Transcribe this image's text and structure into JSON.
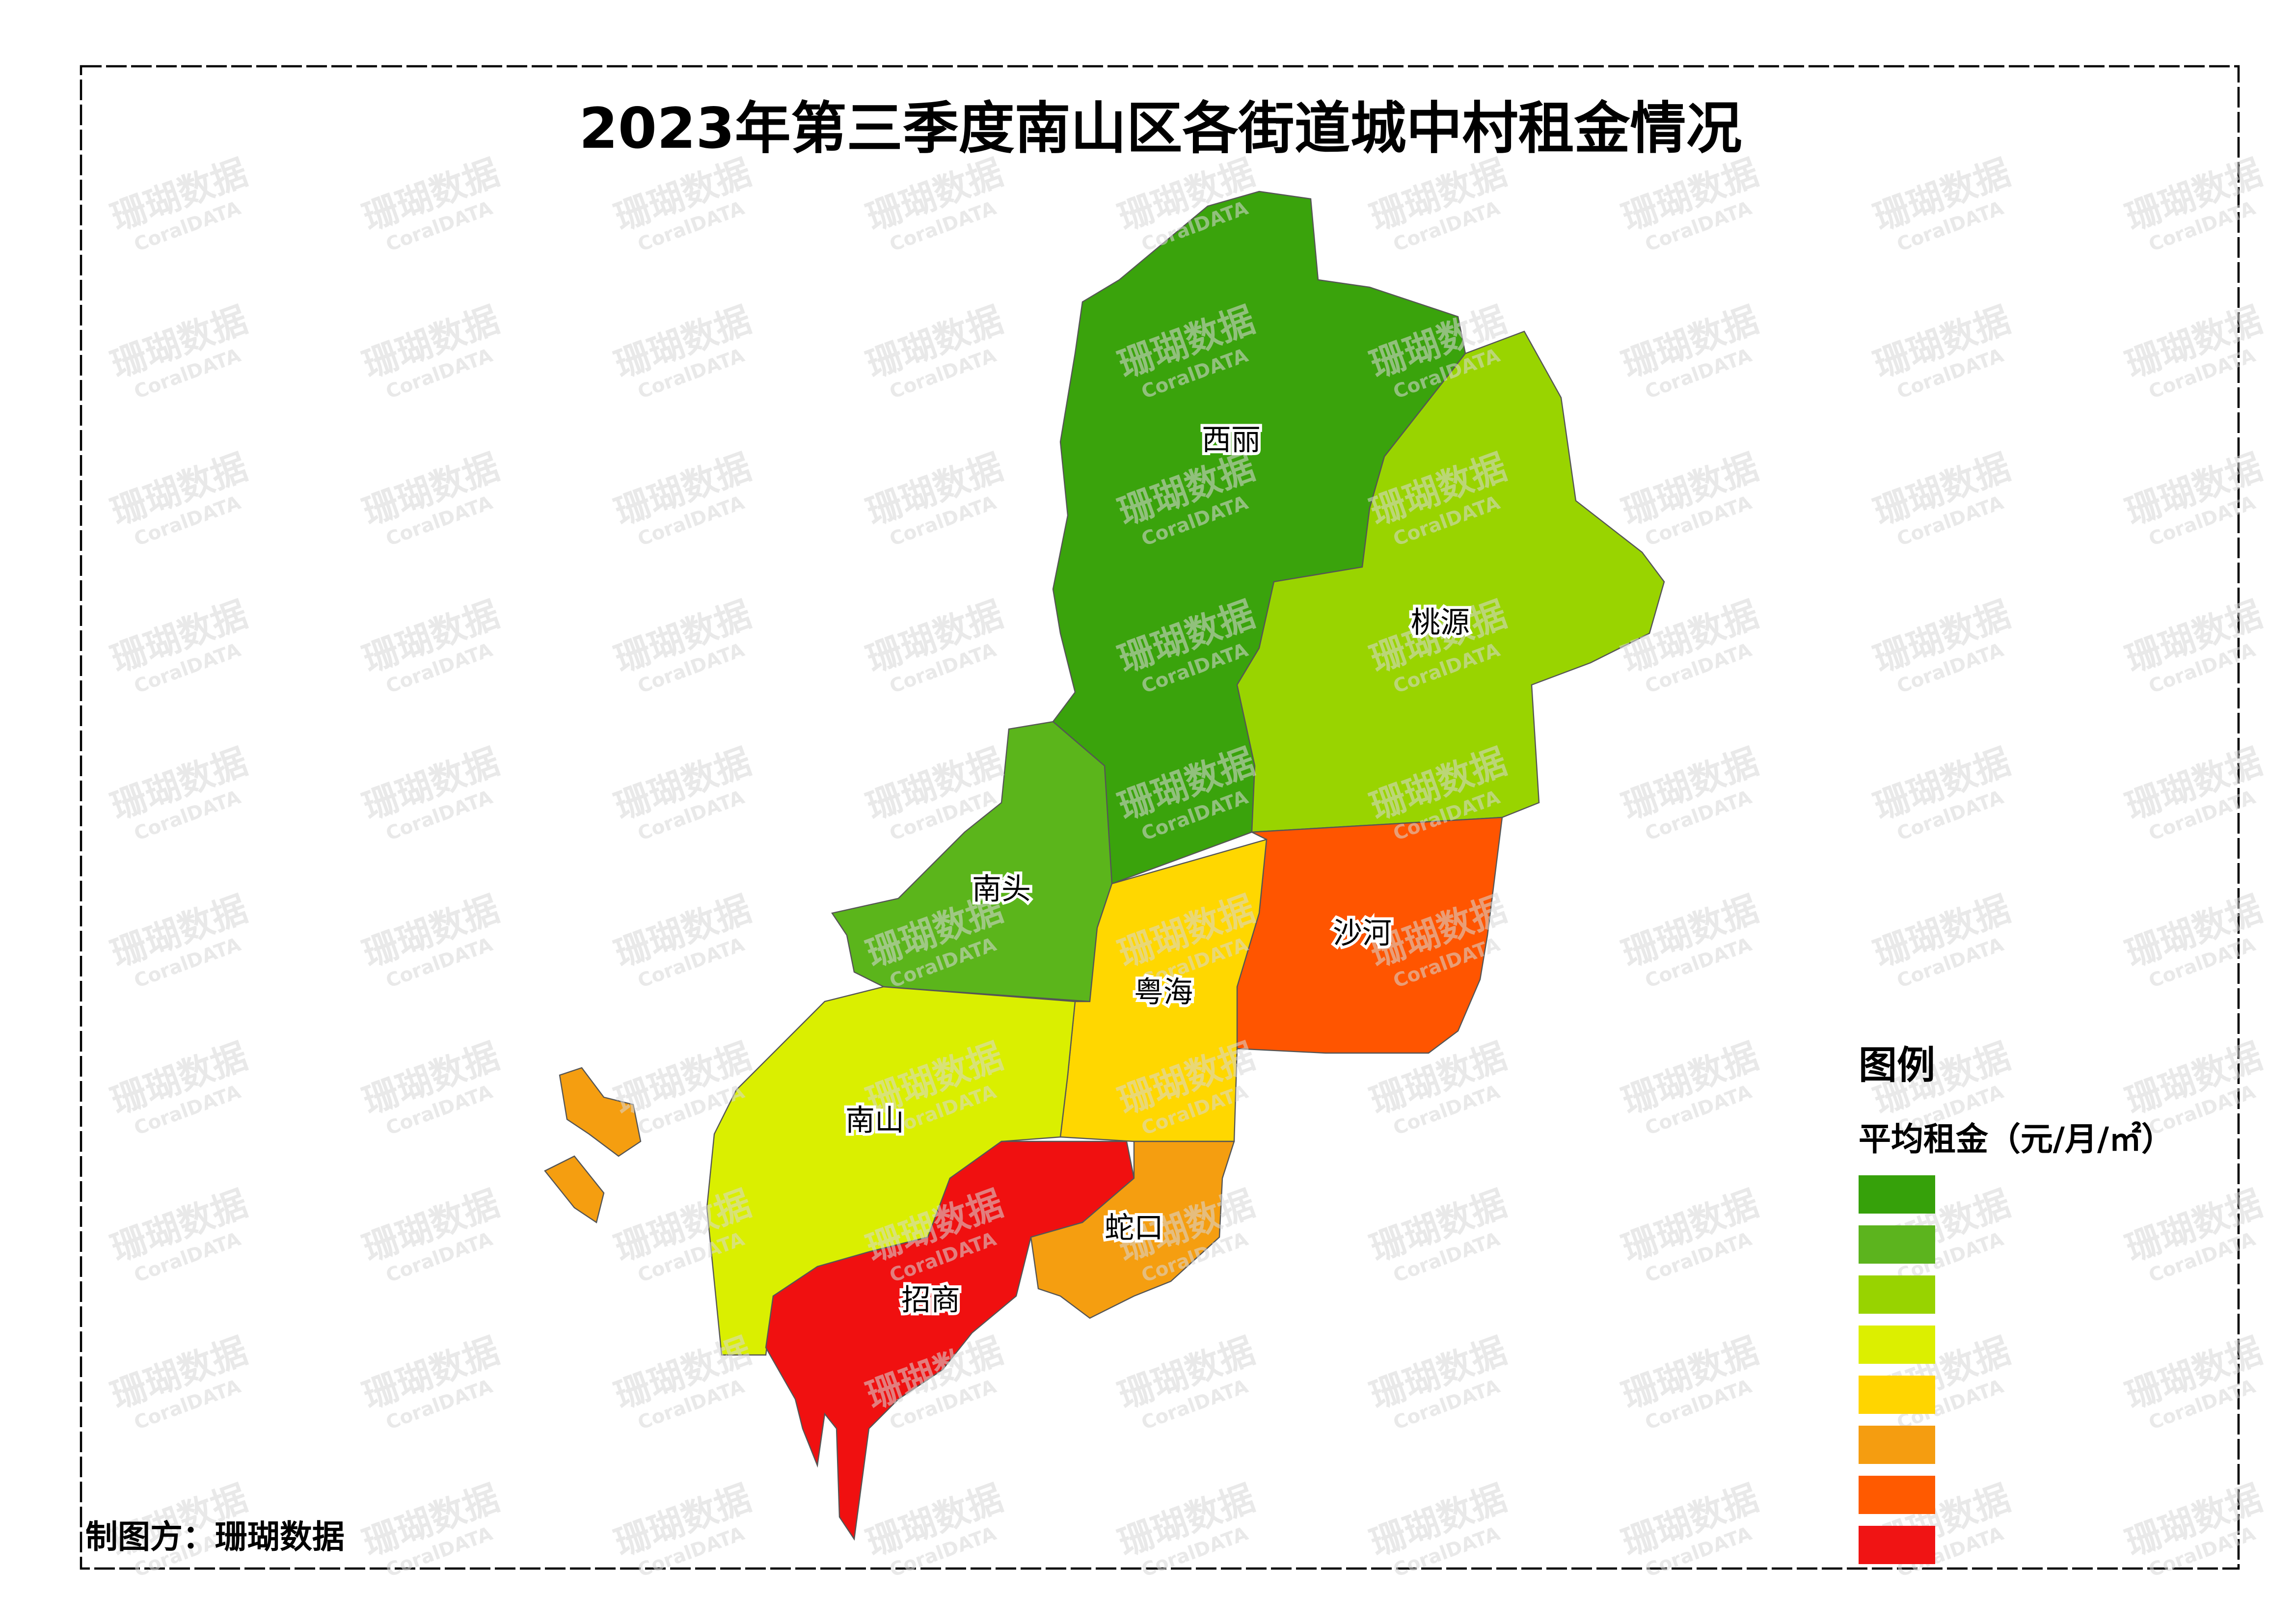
{
  "title": "2023年第三季度南山区各街道城中村租金情况",
  "districts": [
    {
      "name": "西丽",
      "color": "#3aa30c"
    },
    {
      "name": "桃源",
      "color": "#99d400"
    },
    {
      "name": "南头",
      "color": "#5bb51b"
    },
    {
      "name": "沙河",
      "color": "#ff5500"
    },
    {
      "name": "粤海",
      "color": "#ffd700"
    },
    {
      "name": "南山",
      "color": "#daef00"
    },
    {
      "name": "招商",
      "color": "#f01010"
    },
    {
      "name": "蛇口",
      "color": "#f59e10"
    }
  ],
  "legend": {
    "title": "图例",
    "subtitle": "平均租金（元/月/㎡）",
    "colors": [
      "#36a10a",
      "#5cb41e",
      "#98d300",
      "#dcef00",
      "#ffd500",
      "#f59d10",
      "#ff5a00",
      "#f01414"
    ]
  },
  "credit": "制图方：珊瑚数据",
  "watermark": {
    "text": "珊瑚数据",
    "sub": "CoralDATA"
  }
}
